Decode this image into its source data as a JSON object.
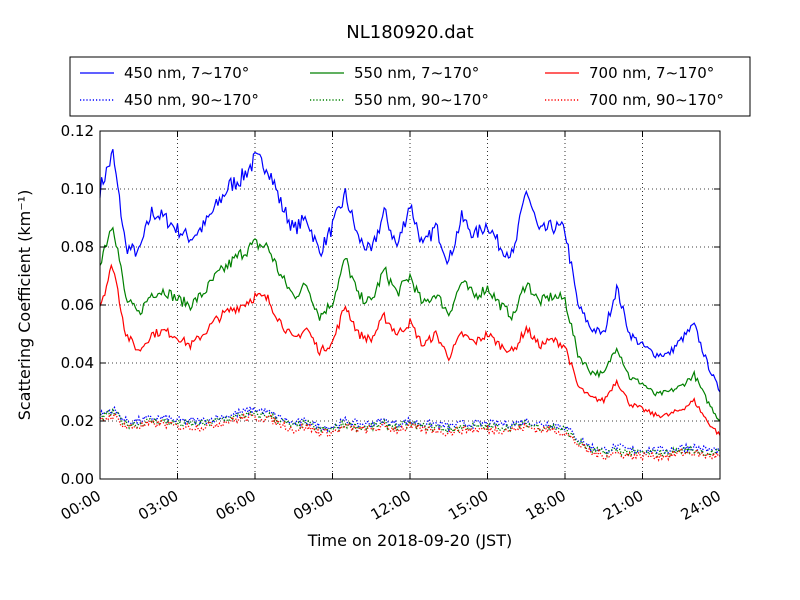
{
  "chart_data": {
    "type": "line",
    "title": "NL180920.dat",
    "xlabel": "Time on 2018-09-20 (JST)",
    "ylabel": "Scattering Coefficient (km⁻¹)",
    "xlim": [
      "00:00",
      "24:00"
    ],
    "ylim": [
      0,
      0.12
    ],
    "xticks": [
      "00:00",
      "03:00",
      "06:00",
      "09:00",
      "12:00",
      "15:00",
      "18:00",
      "21:00",
      "24:00"
    ],
    "yticks": [
      "0.00",
      "0.02",
      "0.04",
      "0.06",
      "0.08",
      "0.10",
      "0.12"
    ],
    "grid": true,
    "legend_position": "top",
    "x": [
      "00:00",
      "00:30",
      "01:00",
      "01:30",
      "02:00",
      "02:30",
      "03:00",
      "03:30",
      "04:00",
      "04:30",
      "05:00",
      "05:30",
      "06:00",
      "06:30",
      "07:00",
      "07:30",
      "08:00",
      "08:30",
      "09:00",
      "09:30",
      "10:00",
      "10:30",
      "11:00",
      "11:30",
      "12:00",
      "12:30",
      "13:00",
      "13:30",
      "14:00",
      "14:30",
      "15:00",
      "15:30",
      "16:00",
      "16:30",
      "17:00",
      "17:30",
      "18:00",
      "18:30",
      "19:00",
      "19:30",
      "20:00",
      "20:30",
      "21:00",
      "21:30",
      "22:00",
      "22:30",
      "23:00",
      "23:30",
      "24:00"
    ],
    "series": [
      {
        "name": "450 nm, 7∼170°",
        "color": "#0000ff",
        "style": "solid",
        "values": [
          0.1,
          0.112,
          0.08,
          0.078,
          0.092,
          0.09,
          0.086,
          0.083,
          0.087,
          0.094,
          0.101,
          0.104,
          0.11,
          0.108,
          0.095,
          0.086,
          0.09,
          0.078,
          0.087,
          0.098,
          0.083,
          0.078,
          0.092,
          0.08,
          0.095,
          0.08,
          0.087,
          0.075,
          0.09,
          0.084,
          0.088,
          0.08,
          0.077,
          0.1,
          0.085,
          0.087,
          0.086,
          0.06,
          0.052,
          0.05,
          0.066,
          0.05,
          0.046,
          0.043,
          0.043,
          0.048,
          0.053,
          0.04,
          0.03
        ]
      },
      {
        "name": "550 nm, 7∼170°",
        "color": "#008000",
        "style": "solid",
        "values": [
          0.075,
          0.089,
          0.062,
          0.057,
          0.064,
          0.065,
          0.062,
          0.06,
          0.064,
          0.07,
          0.074,
          0.078,
          0.081,
          0.08,
          0.07,
          0.063,
          0.067,
          0.056,
          0.061,
          0.076,
          0.063,
          0.061,
          0.072,
          0.064,
          0.07,
          0.06,
          0.064,
          0.057,
          0.068,
          0.063,
          0.066,
          0.06,
          0.056,
          0.068,
          0.061,
          0.063,
          0.062,
          0.043,
          0.037,
          0.036,
          0.046,
          0.035,
          0.033,
          0.029,
          0.03,
          0.032,
          0.036,
          0.027,
          0.02
        ]
      },
      {
        "name": "700 nm, 7∼170°",
        "color": "#ff0000",
        "style": "solid",
        "values": [
          0.06,
          0.074,
          0.05,
          0.044,
          0.05,
          0.051,
          0.049,
          0.046,
          0.05,
          0.055,
          0.058,
          0.06,
          0.063,
          0.062,
          0.054,
          0.048,
          0.052,
          0.044,
          0.047,
          0.06,
          0.05,
          0.048,
          0.056,
          0.05,
          0.054,
          0.046,
          0.05,
          0.042,
          0.05,
          0.047,
          0.05,
          0.046,
          0.044,
          0.052,
          0.046,
          0.048,
          0.046,
          0.032,
          0.028,
          0.027,
          0.034,
          0.026,
          0.024,
          0.022,
          0.022,
          0.024,
          0.027,
          0.02,
          0.015
        ]
      },
      {
        "name": "450 nm, 90∼170°",
        "color": "#0000ff",
        "style": "dotted",
        "values": [
          0.022,
          0.024,
          0.02,
          0.02,
          0.021,
          0.021,
          0.02,
          0.02,
          0.02,
          0.021,
          0.022,
          0.023,
          0.024,
          0.023,
          0.021,
          0.019,
          0.02,
          0.018,
          0.018,
          0.02,
          0.019,
          0.019,
          0.02,
          0.019,
          0.02,
          0.019,
          0.019,
          0.018,
          0.019,
          0.019,
          0.019,
          0.019,
          0.019,
          0.02,
          0.019,
          0.019,
          0.018,
          0.014,
          0.011,
          0.01,
          0.011,
          0.01,
          0.01,
          0.01,
          0.01,
          0.011,
          0.011,
          0.01,
          0.01
        ]
      },
      {
        "name": "550 nm, 90∼170°",
        "color": "#008000",
        "style": "dotted",
        "values": [
          0.021,
          0.023,
          0.019,
          0.019,
          0.02,
          0.02,
          0.019,
          0.019,
          0.019,
          0.02,
          0.021,
          0.022,
          0.022,
          0.022,
          0.02,
          0.018,
          0.019,
          0.017,
          0.017,
          0.019,
          0.018,
          0.018,
          0.019,
          0.018,
          0.019,
          0.018,
          0.018,
          0.017,
          0.018,
          0.018,
          0.018,
          0.018,
          0.018,
          0.019,
          0.018,
          0.018,
          0.017,
          0.013,
          0.01,
          0.009,
          0.01,
          0.009,
          0.009,
          0.009,
          0.009,
          0.01,
          0.01,
          0.009,
          0.009
        ]
      },
      {
        "name": "700 nm, 90∼170°",
        "color": "#ff0000",
        "style": "dotted",
        "values": [
          0.02,
          0.022,
          0.018,
          0.018,
          0.019,
          0.019,
          0.018,
          0.018,
          0.018,
          0.019,
          0.02,
          0.021,
          0.021,
          0.021,
          0.019,
          0.017,
          0.018,
          0.016,
          0.016,
          0.018,
          0.017,
          0.017,
          0.018,
          0.017,
          0.018,
          0.017,
          0.017,
          0.016,
          0.017,
          0.017,
          0.017,
          0.017,
          0.017,
          0.018,
          0.017,
          0.017,
          0.016,
          0.012,
          0.009,
          0.008,
          0.009,
          0.008,
          0.008,
          0.008,
          0.008,
          0.009,
          0.009,
          0.008,
          0.008
        ]
      }
    ]
  }
}
